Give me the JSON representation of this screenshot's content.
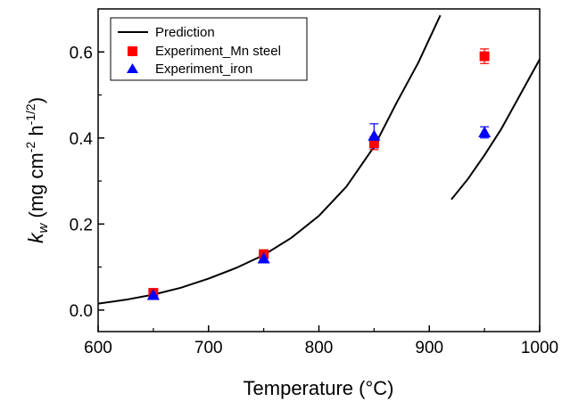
{
  "chart_data": {
    "type": "scatter",
    "xlabel": "Temperature (°C)",
    "ylabel": {
      "symbol": "k",
      "subscript": "w",
      "unit_prefix": " (mg cm",
      "unit_exp1": "-2",
      "unit_mid": " h",
      "unit_exp2": "-1/2",
      "unit_suffix": ")"
    },
    "xlim": [
      600,
      1000
    ],
    "ylim": [
      -0.05,
      0.7
    ],
    "xticks": [
      600,
      700,
      800,
      900,
      1000
    ],
    "yticks": [
      0.0,
      0.2,
      0.4,
      0.6
    ],
    "ytick_labels": [
      "0.0",
      "0.2",
      "0.4",
      "0.6"
    ],
    "grid": false,
    "legend_position": "top-left",
    "series": [
      {
        "name": "Prediction",
        "kind": "line",
        "color": "#000000",
        "segments": [
          {
            "x": [
              600,
              625,
              650,
              675,
              700,
              725,
              750,
              775,
              800,
              825,
              850,
              870,
              890,
              910
            ],
            "y": [
              0.015,
              0.024,
              0.036,
              0.052,
              0.073,
              0.098,
              0.128,
              0.168,
              0.219,
              0.287,
              0.38,
              0.48,
              0.575,
              0.685
            ]
          },
          {
            "x": [
              920,
              935,
              950,
              965,
              980,
              1000
            ],
            "y": [
              0.257,
              0.305,
              0.36,
              0.42,
              0.49,
              0.583
            ]
          }
        ]
      },
      {
        "name": "Experiment_Mn steel",
        "kind": "scatter",
        "marker": "square",
        "color": "#ff0000",
        "x": [
          650,
          750,
          850,
          950
        ],
        "y": [
          0.04,
          0.13,
          0.388,
          0.59
        ],
        "err": [
          0.006,
          0.008,
          0.015,
          0.017
        ]
      },
      {
        "name": "Experiment_iron",
        "kind": "scatter",
        "marker": "triangle",
        "color": "#0000ff",
        "x": [
          650,
          750,
          850,
          950
        ],
        "y": [
          0.035,
          0.12,
          0.405,
          0.413
        ],
        "err": [
          0.01,
          0.01,
          0.028,
          0.013
        ]
      }
    ]
  }
}
